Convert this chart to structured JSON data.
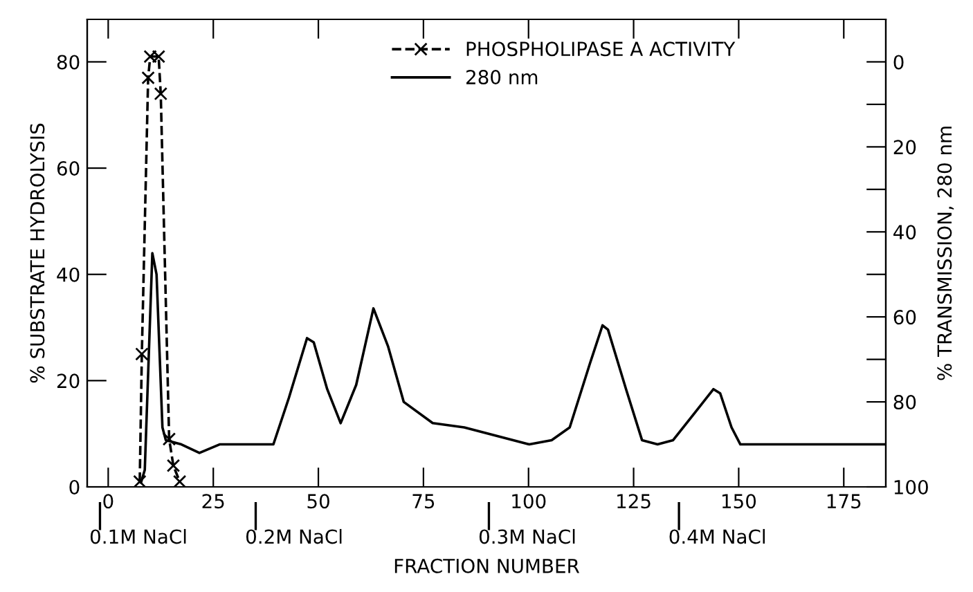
{
  "chart_data": {
    "type": "line",
    "xlabel": "FRACTION NUMBER",
    "ylabel": "% SUBSTRATE HYDROLYSIS",
    "y2label": "% TRANSMISSION, 280 nm",
    "xlim": [
      -5,
      185
    ],
    "xticks": [
      0,
      25,
      50,
      75,
      100,
      125,
      150,
      175
    ],
    "ylim": [
      0,
      88
    ],
    "yticks": [
      0,
      20,
      40,
      60,
      80
    ],
    "y2lim": [
      100,
      -10
    ],
    "y2ticks": [
      0,
      {
        "value": 10,
        "label": null
      },
      20,
      {
        "value": 30,
        "label": null
      },
      40,
      {
        "value": 50,
        "label": null
      },
      60,
      {
        "value": 70,
        "label": null
      },
      80,
      {
        "value": 90,
        "label": null
      },
      100
    ],
    "legend": "top",
    "grid": false,
    "series": [
      {
        "name": "PHOSPHOLIPASE A ACTIVITY",
        "color": "#000000",
        "marker": "cross",
        "line_style": "dashed",
        "x": [
          7.5,
          8,
          9.5,
          10,
          12,
          12.5,
          14.5,
          15.5,
          17
        ],
        "values": [
          1,
          25,
          77,
          81,
          81,
          74,
          9,
          4,
          1
        ]
      },
      {
        "name": "280 nm",
        "color": "#000000",
        "axis": "y2",
        "marker": "none",
        "line_style": "solid",
        "x": [
          7.8,
          8.7,
          10.5,
          11.5,
          12.9,
          13.7,
          17.4,
          21.7,
          26.5,
          39.3,
          43,
          47.3,
          48.9,
          52.1,
          55.3,
          59,
          63.1,
          66.6,
          70.3,
          77.2,
          84.7,
          100.2,
          105.5,
          109.8,
          114.6,
          117.6,
          118.9,
          123.2,
          127,
          130.7,
          134.4,
          139.2,
          144,
          145.6,
          148.3,
          150.4,
          184.6
        ],
        "values": [
          99,
          96,
          45,
          50,
          86,
          89,
          90,
          92,
          90,
          90,
          79,
          65,
          66,
          77,
          85,
          76,
          58,
          67,
          80,
          85,
          86,
          90,
          89,
          86,
          71,
          62,
          63,
          77,
          89,
          90,
          89,
          83,
          77,
          78,
          86,
          90,
          90
        ]
      }
    ],
    "annotations": [
      "0.1M NaCl",
      "0.2M NaCl",
      "0.3M NaCl",
      "0.4M NaCl"
    ]
  }
}
